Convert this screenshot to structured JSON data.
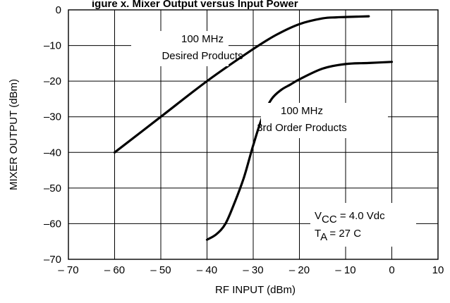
{
  "chart_data": {
    "type": "line",
    "title_fragment": "igure x. Mixer Output versus Input Power",
    "xlabel": "RF INPUT (dBm)",
    "ylabel": "MIXER OUTPUT (dBm)",
    "xlim": [
      -70,
      10
    ],
    "ylim": [
      -70,
      0
    ],
    "xticks": [
      -70,
      -60,
      -50,
      -40,
      -30,
      -20,
      -10,
      0,
      10
    ],
    "yticks": [
      0,
      -10,
      -20,
      -30,
      -40,
      -50,
      -60,
      -70
    ],
    "xtick_labels": [
      "– 70",
      "– 60",
      "– 50",
      "– 40",
      "– 30",
      "– 20",
      "– 10",
      "0",
      "10"
    ],
    "ytick_labels": [
      "0",
      "–10",
      "–20",
      "–30",
      "–40",
      "–50",
      "–60",
      "–70"
    ],
    "grid": true,
    "series": [
      {
        "label_lines": [
          "100 MHz",
          "Desired Products"
        ],
        "x": [
          -60,
          -50,
          -40,
          -30,
          -25,
          -20,
          -15,
          -12,
          -10,
          -5
        ],
        "y": [
          -40,
          -30,
          -20,
          -11,
          -7,
          -4,
          -2.4,
          -2.1,
          -2.0,
          -1.8
        ]
      },
      {
        "label_lines": [
          "100 MHz",
          "3rd Order Products"
        ],
        "x": [
          -40,
          -38,
          -36,
          -34,
          -32,
          -30,
          -28,
          -26,
          -24,
          -22,
          -20,
          -15,
          -10,
          -5,
          0
        ],
        "y": [
          -64.5,
          -63,
          -60,
          -54,
          -47,
          -38,
          -30,
          -25,
          -22.5,
          -21,
          -19.5,
          -16.5,
          -15.2,
          -14.9,
          -14.6
        ]
      }
    ],
    "conditions": [
      {
        "main": "V",
        "sub": "CC",
        "rest": " = 4.0 Vdc"
      },
      {
        "main": "T",
        "sub": "A",
        "rest": " = 27  C"
      }
    ]
  }
}
